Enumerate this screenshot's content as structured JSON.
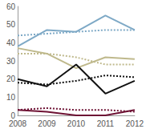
{
  "chart_data": {
    "type": "line",
    "categories": [
      "2008",
      "2009",
      "2010",
      "2011",
      "2012"
    ],
    "series": [
      {
        "color": "#7ea9c6",
        "line_style": "solid",
        "values": [
          38,
          47,
          46,
          55,
          47
        ]
      },
      {
        "color": "#7ea9c6",
        "line_style": "dotted",
        "values": [
          44,
          45,
          46,
          47,
          47
        ]
      },
      {
        "color": "#bfb98c",
        "line_style": "solid",
        "values": [
          37,
          34,
          26,
          32,
          31
        ]
      },
      {
        "color": "#bfb98c",
        "line_style": "dotted",
        "values": [
          34,
          34,
          32,
          28,
          28
        ]
      },
      {
        "color": "#111111",
        "line_style": "solid",
        "values": [
          20,
          16,
          28,
          12,
          19
        ]
      },
      {
        "color": "#111111",
        "line_style": "dotted",
        "values": [
          18,
          17,
          19,
          22,
          21
        ]
      },
      {
        "color": "#6e1234",
        "line_style": "solid",
        "values": [
          3,
          2,
          0,
          0,
          3
        ]
      },
      {
        "color": "#6e1234",
        "line_style": "dotted",
        "values": [
          3,
          4,
          3,
          3,
          2
        ]
      }
    ],
    "ylim": [
      0,
      60
    ],
    "yticks": [
      0,
      10,
      20,
      30,
      40,
      50,
      60
    ],
    "grid": false
  }
}
